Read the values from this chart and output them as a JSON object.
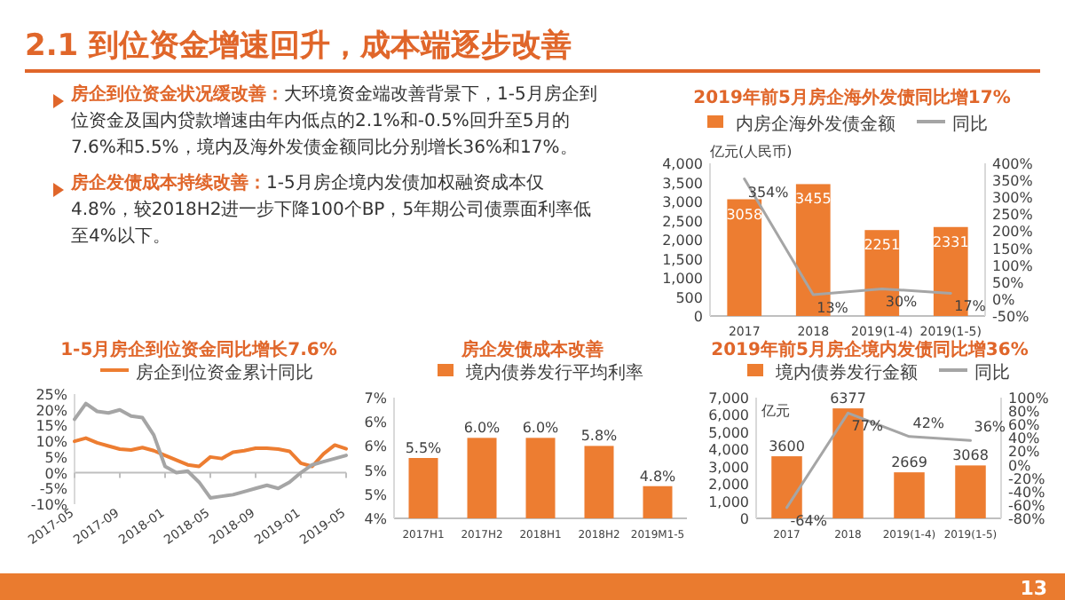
{
  "chart_data": [
    {
      "type": "other",
      "title": "2.1 到位资金增速回升，成本端逐步改善",
      "annotations": [
        "房企到位资金状况缓改善：",
        "大环境资金端改善背景下，1-5月房企到位资金及国内贷款增速由年内低点的2.1%和-0.5%回升至5月的7.6%和5.5%，境内及海外发债金额同比分别增长36%和17%。",
        "房企发债成本持续改善：",
        "1-5月房企境内发债加权融资成本仅4.8%，较2018H2进一步下降100个BP，5年期公司债票面利率低至4%以下。",
        "13"
      ]
    },
    {
      "type": "bar",
      "title": "2019年前5月房企海外发债同比增17%",
      "ylabel": "亿元(人民币)",
      "categories": [
        "2017",
        "2018",
        "2019(1-4)",
        "2019(1-5)"
      ],
      "legend": "top",
      "series": [
        {
          "name": "内房企海外发债金额",
          "color": "#ed7d31",
          "values": [
            3058,
            3455,
            2251,
            2331
          ],
          "value_labels": [
            "3058",
            "3455",
            "2251",
            "2331"
          ]
        },
        {
          "name": "同比",
          "type": "line",
          "axis": "y2",
          "color": "#a5a5a5",
          "values": [
            354,
            13,
            30,
            17
          ],
          "value_labels": [
            "354%",
            "13%",
            "30%",
            "17%"
          ]
        }
      ],
      "ylim": [
        0,
        4000
      ],
      "yticks": [
        {
          "value": 0,
          "label": "0"
        },
        500,
        {
          "value": 1000,
          "label": "1,000"
        },
        {
          "value": 1500,
          "label": "1,500"
        },
        {
          "value": 2000,
          "label": "2,000"
        },
        {
          "value": 2500,
          "label": "2,500"
        },
        {
          "value": 3000,
          "label": "3,000"
        },
        {
          "value": 3500,
          "label": "3,500"
        },
        {
          "value": 4000,
          "label": "4,000"
        }
      ],
      "y2lim": [
        -50,
        400
      ],
      "y2ticks": [
        {
          "value": -50,
          "label": "-50%"
        },
        {
          "value": 0,
          "label": "0%"
        },
        {
          "value": 50,
          "label": "50%"
        },
        {
          "value": 100,
          "label": "100%"
        },
        {
          "value": 150,
          "label": "150%"
        },
        {
          "value": 200,
          "label": "200%"
        },
        {
          "value": 250,
          "label": "250%"
        },
        {
          "value": 300,
          "label": "300%"
        },
        {
          "value": 350,
          "label": "350%"
        },
        {
          "value": 400,
          "label": "400%"
        }
      ]
    },
    {
      "type": "line",
      "title": "1-5月房企到位资金同比增长7.6%",
      "legend": "top",
      "xlim": [
        "2017-05",
        "2019-05"
      ],
      "xticks": [
        "2017-05",
        "2017-09",
        "2018-01",
        "2018-05",
        "2018-09",
        "2019-01",
        "2019-05"
      ],
      "x": [
        "2017-05",
        "2017-06",
        "2017-07",
        "2017-08",
        "2017-09",
        "2017-10",
        "2017-11",
        "2017-12",
        "2018-01",
        "2018-02",
        "2018-03",
        "2018-04",
        "2018-05",
        "2018-06",
        "2018-07",
        "2018-08",
        "2018-09",
        "2018-10",
        "2018-11",
        "2018-12",
        "2019-01",
        "2019-02",
        "2019-03",
        "2019-04",
        "2019-05"
      ],
      "series": [
        {
          "name": "房企到位资金累计同比",
          "color": "#ed7d31",
          "values": [
            10,
            11,
            9.5,
            8.5,
            7.5,
            7.2,
            8,
            7,
            5.5,
            4,
            2.5,
            2,
            5,
            4.5,
            6.5,
            7,
            7.8,
            7.8,
            7.5,
            6.8,
            3,
            2,
            6,
            8.8,
            7.6
          ]
        },
        {
          "color": "#a5a5a5",
          "values": [
            17,
            22,
            19.5,
            19,
            20,
            18,
            17.5,
            12,
            2,
            0,
            0.5,
            -3,
            -8,
            -7.5,
            -7,
            -6,
            -5,
            -4,
            -5,
            -3,
            0,
            2.5,
            3.5,
            4.5,
            5.5
          ]
        }
      ],
      "ylim": [
        -10,
        25
      ],
      "yticks": [
        {
          "value": -10,
          "label": "-10%"
        },
        {
          "value": -5,
          "label": "-5%"
        },
        {
          "value": 0,
          "label": "0%"
        },
        {
          "value": 5,
          "label": "5%"
        },
        {
          "value": 10,
          "label": "10%"
        },
        {
          "value": 15,
          "label": "15%"
        },
        {
          "value": 20,
          "label": "20%"
        },
        {
          "value": 25,
          "label": "25%"
        }
      ]
    },
    {
      "type": "bar",
      "title": "房企发债成本改善",
      "legend": "top",
      "categories": [
        "2017H1",
        "2017H2",
        "2018H1",
        "2018H2",
        "2019M1-5"
      ],
      "series": [
        {
          "name": "境内债券发行平均利率",
          "color": "#ed7d31",
          "values": [
            5.5,
            6.0,
            6.0,
            5.8,
            4.8
          ],
          "value_labels": [
            "5.5%",
            "6.0%",
            "6.0%",
            "5.8%",
            "4.8%"
          ]
        }
      ],
      "ylim": [
        4,
        7
      ],
      "yticks": [
        {
          "value": 4,
          "label": "4%"
        },
        {
          "value": 4.6,
          "label": "5%"
        },
        {
          "value": 5.2,
          "label": "5%"
        },
        {
          "value": 5.8,
          "label": "6%"
        },
        {
          "value": 6.4,
          "label": "6%"
        },
        {
          "value": 7,
          "label": "7%"
        }
      ]
    },
    {
      "type": "bar",
      "title": "2019年前5月房企境内发债同比增36%",
      "ylabel": "亿元",
      "categories": [
        "2017",
        "2018",
        "2019(1-4)",
        "2019(1-5)"
      ],
      "legend": "top",
      "series": [
        {
          "name": "境内债券发行金额",
          "color": "#ed7d31",
          "values": [
            3600,
            6377,
            2669,
            3068
          ],
          "value_labels": [
            "3600",
            "6377",
            "2669",
            "3068"
          ]
        },
        {
          "name": "同比",
          "type": "line",
          "axis": "y2",
          "color": "#a5a5a5",
          "values": [
            -64,
            77,
            42,
            36
          ],
          "value_labels": [
            "-64%",
            "77%",
            "42%",
            "36%"
          ]
        }
      ],
      "ylim": [
        0,
        7000
      ],
      "yticks": [
        {
          "value": 0,
          "label": "0"
        },
        {
          "value": 1000,
          "label": "1,000"
        },
        {
          "value": 2000,
          "label": "2,000"
        },
        {
          "value": 3000,
          "label": "3,000"
        },
        {
          "value": 4000,
          "label": "4,000"
        },
        {
          "value": 5000,
          "label": "5,000"
        },
        {
          "value": 6000,
          "label": "6,000"
        },
        {
          "value": 7000,
          "label": "7,000"
        }
      ],
      "y2lim": [
        -80,
        100
      ],
      "y2ticks": [
        {
          "value": -80,
          "label": "-80%"
        },
        {
          "value": -60,
          "label": "-60%"
        },
        {
          "value": -40,
          "label": "-40%"
        },
        {
          "value": -20,
          "label": "-20%"
        },
        {
          "value": 0,
          "label": "0%"
        },
        {
          "value": 20,
          "label": "20%"
        },
        {
          "value": 40,
          "label": "40%"
        },
        {
          "value": 60,
          "label": "60%"
        },
        {
          "value": 80,
          "label": "80%"
        },
        {
          "value": 100,
          "label": "100%"
        }
      ]
    }
  ]
}
